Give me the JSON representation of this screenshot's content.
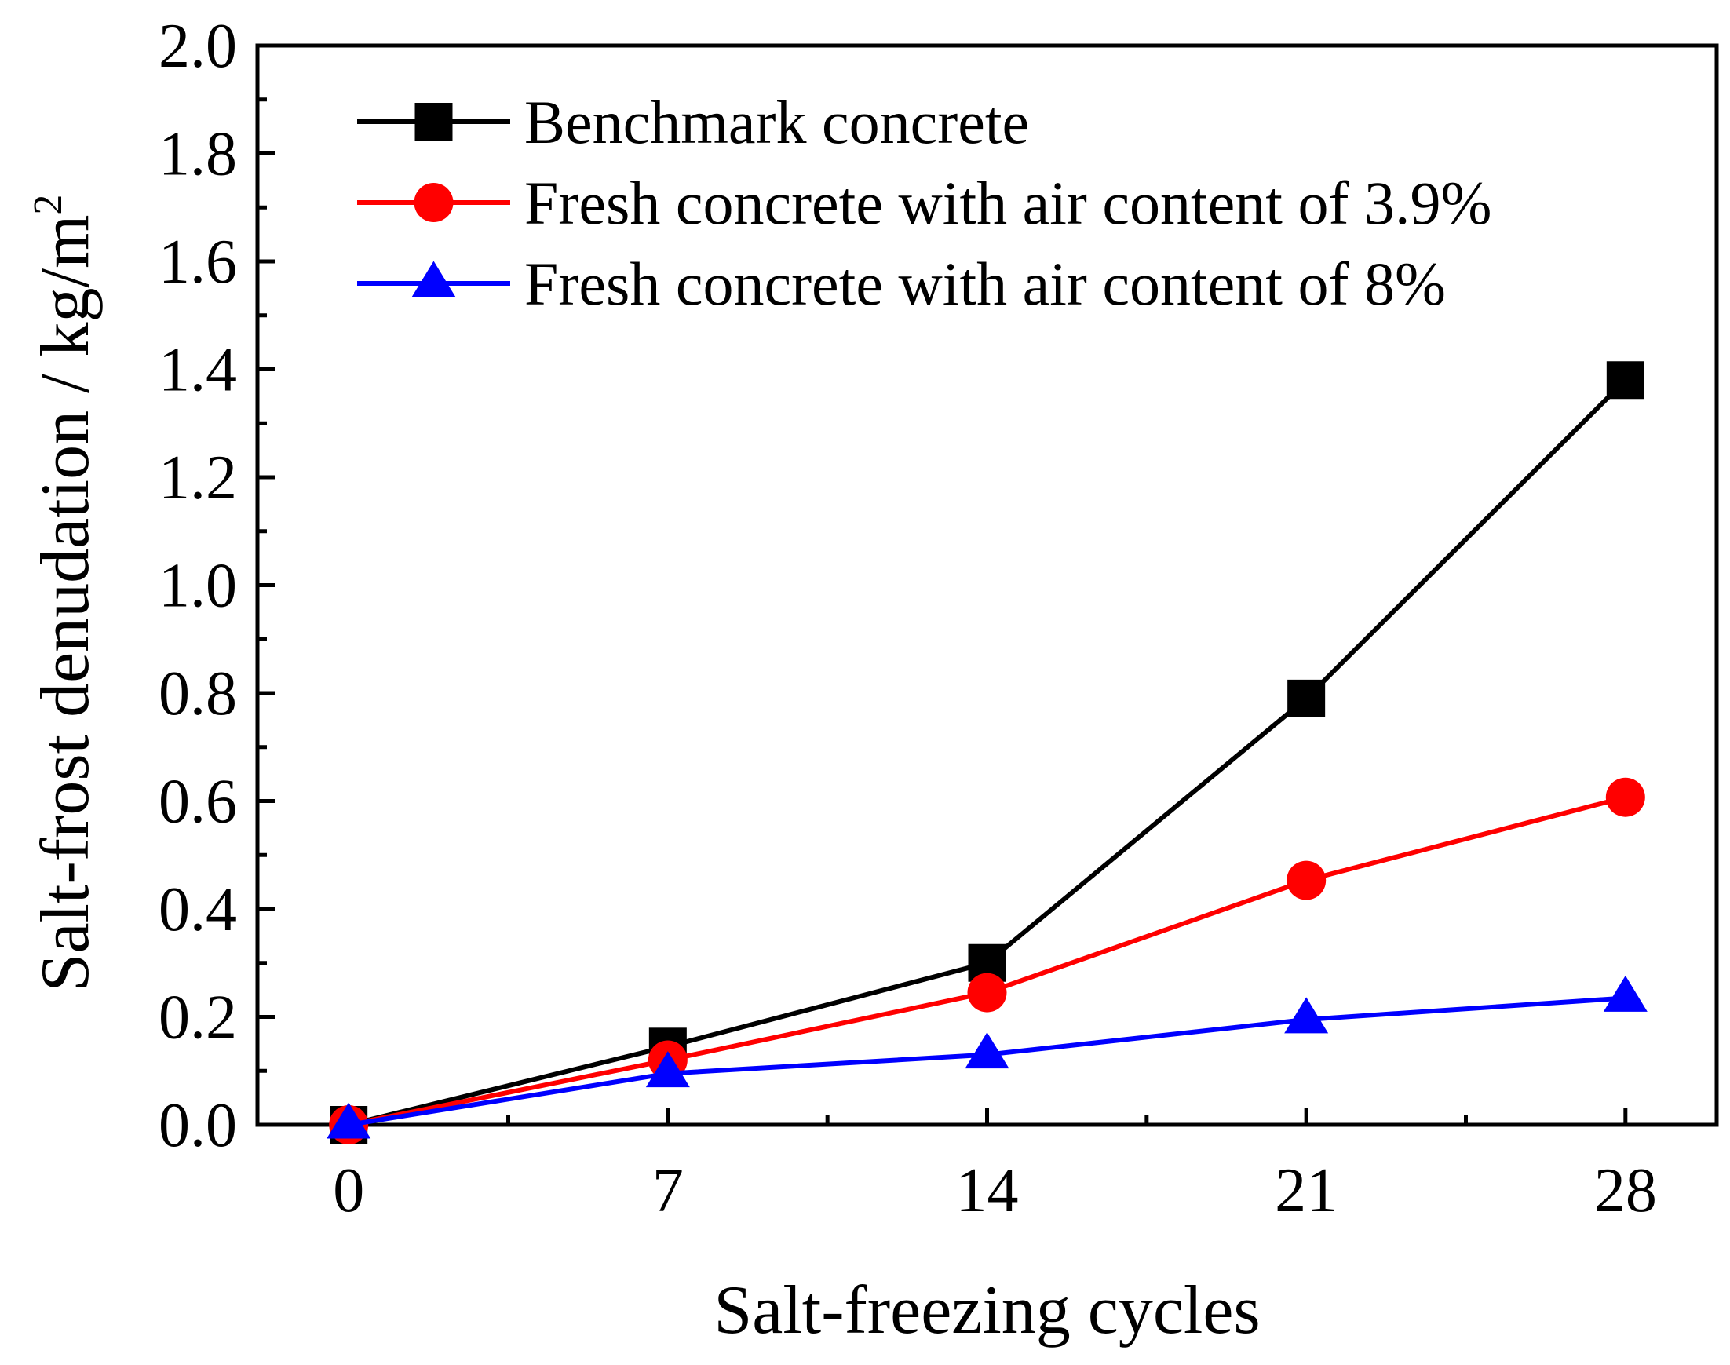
{
  "chart_data": {
    "type": "line",
    "title": "",
    "xlabel": "Salt-freezing cycles",
    "ylabel": "Salt-frost denudation / kg/m",
    "ylabel_superscript": "2",
    "x": [
      0,
      7,
      14,
      21,
      28
    ],
    "x_tick_labels": [
      "0",
      "7",
      "14",
      "21",
      "28"
    ],
    "xlim": [
      -2,
      30
    ],
    "ylim": [
      0,
      2.0
    ],
    "y_ticks": [
      0.0,
      0.2,
      0.4,
      0.6,
      0.8,
      1.0,
      1.2,
      1.4,
      1.6,
      1.8,
      2.0
    ],
    "y_tick_labels": [
      "0.0",
      "0.2",
      "0.4",
      "0.6",
      "0.8",
      "1.0",
      "1.2",
      "1.4",
      "1.6",
      "1.8",
      "2.0"
    ],
    "grid": false,
    "legend_position": "top-left",
    "series": [
      {
        "name": "Benchmark concrete",
        "marker": "square",
        "color": "#000000",
        "values": [
          0.0,
          0.145,
          0.3,
          0.79,
          1.38
        ]
      },
      {
        "name": "Fresh concrete with air content of 3.9%",
        "marker": "circle",
        "color": "#ff0000",
        "values": [
          0.0,
          0.12,
          0.245,
          0.453,
          0.607
        ]
      },
      {
        "name": "Fresh concrete with air content of 8%",
        "marker": "triangle",
        "color": "#0000ff",
        "values": [
          0.0,
          0.095,
          0.13,
          0.195,
          0.235
        ]
      }
    ]
  }
}
